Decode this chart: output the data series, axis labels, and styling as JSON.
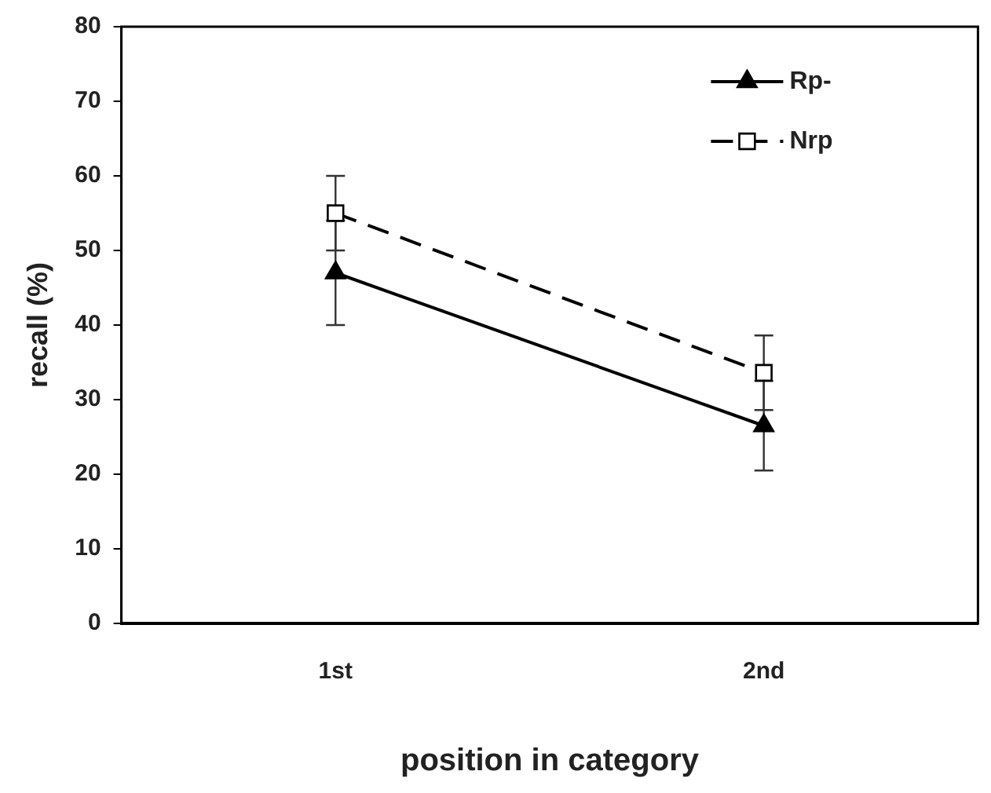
{
  "chart_data": {
    "type": "line",
    "xlabel": "position in category",
    "ylabel": "recall (%)",
    "categories": [
      "1st",
      "2nd"
    ],
    "series": [
      {
        "name": "Rp-",
        "color": "#000000",
        "values": [
          47,
          26.5
        ],
        "errors": [
          7,
          6
        ],
        "marker": "triangle",
        "line_style": "solid"
      },
      {
        "name": "Nrp",
        "color": "#000000",
        "values": [
          55,
          33.6
        ],
        "errors": [
          5,
          5
        ],
        "marker": "square",
        "line_style": "dashed"
      }
    ],
    "ylim": [
      0,
      80
    ],
    "yticks": [
      0,
      10,
      20,
      30,
      40,
      50,
      60,
      70,
      80
    ],
    "grid": false,
    "legend": "top right"
  }
}
